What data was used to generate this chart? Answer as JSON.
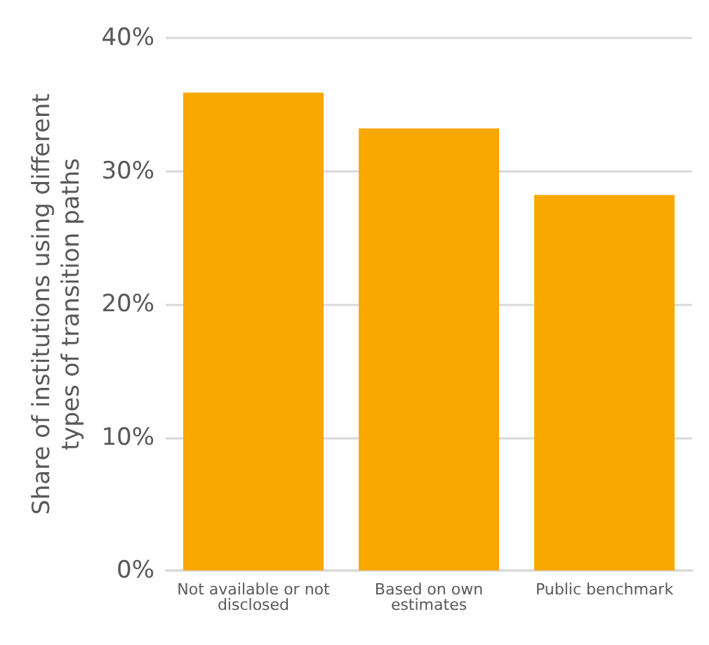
{
  "chart_data": {
    "type": "bar",
    "ylabel": "Share of institutions using different types of transition paths",
    "categories": [
      "Not available or not disclosed",
      "Based on own estimates",
      "Public benchmark"
    ],
    "values": [
      35.9,
      33.2,
      28.2
    ],
    "color": "#f9a800",
    "ylim": [
      0,
      40
    ],
    "yticks": [
      {
        "value": 0,
        "label": "0%"
      },
      {
        "value": 10,
        "label": "10%"
      },
      {
        "value": 20,
        "label": "20%"
      },
      {
        "value": 30,
        "label": "30%"
      },
      {
        "value": 40,
        "label": "40%"
      }
    ],
    "grid": "y"
  }
}
